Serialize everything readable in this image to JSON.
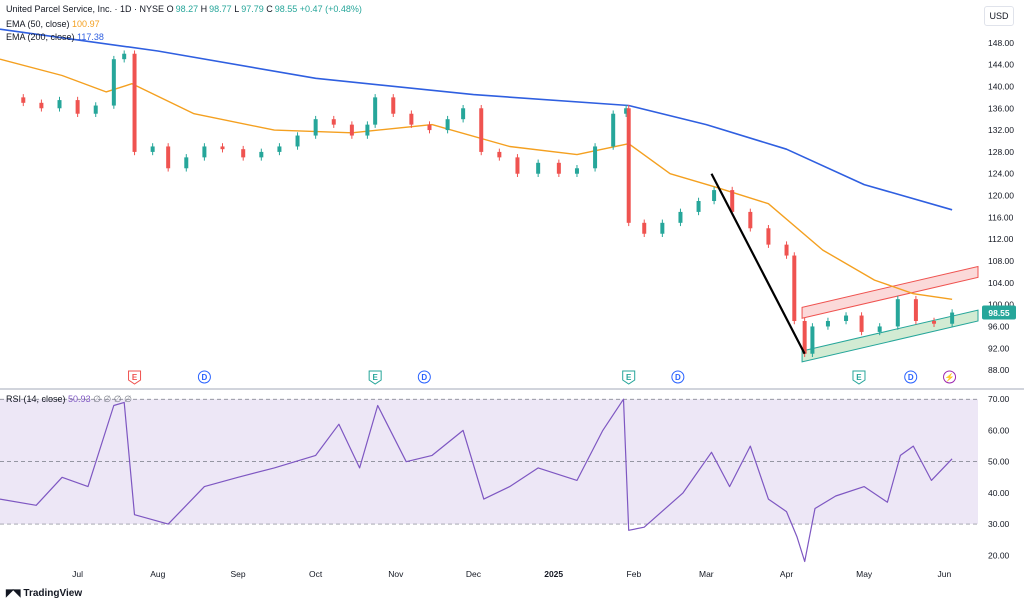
{
  "header": {
    "title": "United Parcel Service, Inc. · 1D · NYSE",
    "ohlc": [
      {
        "k": "O",
        "v": "98.27"
      },
      {
        "k": "H",
        "v": "98.77"
      },
      {
        "k": "L",
        "v": "97.79"
      },
      {
        "k": "C",
        "v": "98.55"
      }
    ],
    "change": "+0.47 (+0.48%)",
    "ema50_label": "EMA (50, close)",
    "ema50_value": "100.97",
    "ema200_label": "EMA (200, close)",
    "ema200_value": "117.38",
    "rsi_label": "RSI (14, close)",
    "rsi_value": "50.93",
    "rsi_extra": "∅ ∅ ∅ ∅"
  },
  "currency": "USD",
  "last_price": "98.55",
  "watermark": "TradingView",
  "colors": {
    "up": "#26a69a",
    "down": "#ef5350",
    "ema50": "#f4a020",
    "ema200": "#2f5fe0",
    "rsi": "#7e57c2",
    "rsi_band": "#ede7f6"
  },
  "events": [
    {
      "letter": "E",
      "color": "#ef5350",
      "date": "2024-07-23"
    },
    {
      "letter": "D",
      "color": "#2962ff",
      "date": "2024-08-19"
    },
    {
      "letter": "E",
      "color": "#26a69a",
      "date": "2024-10-24"
    },
    {
      "letter": "D",
      "color": "#2962ff",
      "date": "2024-11-12"
    },
    {
      "letter": "E",
      "color": "#26a69a",
      "date": "2025-01-30"
    },
    {
      "letter": "D",
      "color": "#2962ff",
      "date": "2025-02-18"
    },
    {
      "letter": "E",
      "color": "#26a69a",
      "date": "2025-04-29"
    },
    {
      "letter": "D",
      "color": "#2962ff",
      "date": "2025-05-19"
    },
    {
      "letter": "⚡",
      "color": "#9c27b0",
      "date": "2025-06-03"
    }
  ],
  "chart_data": [
    {
      "type": "candlestick",
      "title": "United Parcel Service, Inc. · 1D · NYSE",
      "ylim": [
        86,
        152
      ],
      "yticks": [
        88,
        92,
        96,
        100,
        104,
        108,
        112,
        116,
        120,
        124,
        128,
        132,
        136,
        140,
        144,
        148
      ],
      "xlim": [
        "2024-06-01",
        "2025-06-14"
      ],
      "x_tick_labels": [
        {
          "label": "Jul",
          "date": "2024-07-01"
        },
        {
          "label": "Aug",
          "date": "2024-08-01"
        },
        {
          "label": "Sep",
          "date": "2024-09-01"
        },
        {
          "label": "Oct",
          "date": "2024-10-01"
        },
        {
          "label": "Nov",
          "date": "2024-11-01"
        },
        {
          "label": "Dec",
          "date": "2024-12-01"
        },
        {
          "label": "2025",
          "date": "2025-01-01"
        },
        {
          "label": "Feb",
          "date": "2025-02-01"
        },
        {
          "label": "Mar",
          "date": "2025-03-01"
        },
        {
          "label": "Apr",
          "date": "2025-04-01"
        },
        {
          "label": "May",
          "date": "2025-05-01"
        },
        {
          "label": "Jun",
          "date": "2025-06-01"
        }
      ],
      "close_series": [
        {
          "date": "2024-06-03",
          "close": 138.0
        },
        {
          "date": "2024-06-10",
          "close": 137.0
        },
        {
          "date": "2024-06-17",
          "close": 136.0
        },
        {
          "date": "2024-06-24",
          "close": 137.5
        },
        {
          "date": "2024-07-01",
          "close": 135.0
        },
        {
          "date": "2024-07-08",
          "close": 136.5
        },
        {
          "date": "2024-07-15",
          "close": 145.0
        },
        {
          "date": "2024-07-19",
          "close": 146.0
        },
        {
          "date": "2024-07-23",
          "close": 128.0
        },
        {
          "date": "2024-07-30",
          "close": 129.0
        },
        {
          "date": "2024-08-05",
          "close": 125.0
        },
        {
          "date": "2024-08-12",
          "close": 127.0
        },
        {
          "date": "2024-08-19",
          "close": 129.0
        },
        {
          "date": "2024-08-26",
          "close": 128.5
        },
        {
          "date": "2024-09-03",
          "close": 127.0
        },
        {
          "date": "2024-09-10",
          "close": 128.0
        },
        {
          "date": "2024-09-17",
          "close": 129.0
        },
        {
          "date": "2024-09-24",
          "close": 131.0
        },
        {
          "date": "2024-10-01",
          "close": 134.0
        },
        {
          "date": "2024-10-08",
          "close": 133.0
        },
        {
          "date": "2024-10-15",
          "close": 131.0
        },
        {
          "date": "2024-10-21",
          "close": 133.0
        },
        {
          "date": "2024-10-24",
          "close": 138.0
        },
        {
          "date": "2024-10-31",
          "close": 135.0
        },
        {
          "date": "2024-11-07",
          "close": 133.0
        },
        {
          "date": "2024-11-14",
          "close": 132.0
        },
        {
          "date": "2024-11-21",
          "close": 134.0
        },
        {
          "date": "2024-11-27",
          "close": 136.0
        },
        {
          "date": "2024-12-04",
          "close": 128.0
        },
        {
          "date": "2024-12-11",
          "close": 127.0
        },
        {
          "date": "2024-12-18",
          "close": 124.0
        },
        {
          "date": "2024-12-26",
          "close": 126.0
        },
        {
          "date": "2025-01-03",
          "close": 124.0
        },
        {
          "date": "2025-01-10",
          "close": 125.0
        },
        {
          "date": "2025-01-17",
          "close": 129.0
        },
        {
          "date": "2025-01-24",
          "close": 135.0
        },
        {
          "date": "2025-01-29",
          "close": 136.0
        },
        {
          "date": "2025-01-30",
          "close": 115.0
        },
        {
          "date": "2025-02-05",
          "close": 113.0
        },
        {
          "date": "2025-02-12",
          "close": 115.0
        },
        {
          "date": "2025-02-19",
          "close": 117.0
        },
        {
          "date": "2025-02-26",
          "close": 119.0
        },
        {
          "date": "2025-03-04",
          "close": 121.0
        },
        {
          "date": "2025-03-11",
          "close": 117.0
        },
        {
          "date": "2025-03-18",
          "close": 114.0
        },
        {
          "date": "2025-03-25",
          "close": 111.0
        },
        {
          "date": "2025-04-01",
          "close": 109.0
        },
        {
          "date": "2025-04-04",
          "close": 97.0
        },
        {
          "date": "2025-04-08",
          "close": 91.0
        },
        {
          "date": "2025-04-11",
          "close": 96.0
        },
        {
          "date": "2025-04-17",
          "close": 97.0
        },
        {
          "date": "2025-04-24",
          "close": 98.0
        },
        {
          "date": "2025-04-30",
          "close": 95.0
        },
        {
          "date": "2025-05-07",
          "close": 96.0
        },
        {
          "date": "2025-05-14",
          "close": 101.0
        },
        {
          "date": "2025-05-21",
          "close": 97.0
        },
        {
          "date": "2025-05-28",
          "close": 96.5
        },
        {
          "date": "2025-06-04",
          "close": 98.55
        }
      ],
      "ema50": [
        {
          "date": "2024-06-01",
          "value": 145.0
        },
        {
          "date": "2024-06-25",
          "value": 142.0
        },
        {
          "date": "2024-07-12",
          "value": 139.0
        },
        {
          "date": "2024-07-22",
          "value": 140.5
        },
        {
          "date": "2024-08-15",
          "value": 135.0
        },
        {
          "date": "2024-09-15",
          "value": 132.0
        },
        {
          "date": "2024-10-15",
          "value": 131.5
        },
        {
          "date": "2024-11-15",
          "value": 133.0
        },
        {
          "date": "2024-12-15",
          "value": 129.0
        },
        {
          "date": "2025-01-10",
          "value": 127.5
        },
        {
          "date": "2025-01-30",
          "value": 129.5
        },
        {
          "date": "2025-02-15",
          "value": 124.0
        },
        {
          "date": "2025-03-05",
          "value": 121.5
        },
        {
          "date": "2025-03-25",
          "value": 118.5
        },
        {
          "date": "2025-04-15",
          "value": 110.0
        },
        {
          "date": "2025-05-05",
          "value": 104.5
        },
        {
          "date": "2025-05-20",
          "value": 102.0
        },
        {
          "date": "2025-06-04",
          "value": 100.97
        }
      ],
      "ema200": [
        {
          "date": "2024-06-01",
          "value": 150.5
        },
        {
          "date": "2024-08-01",
          "value": 146.5
        },
        {
          "date": "2024-10-01",
          "value": 141.5
        },
        {
          "date": "2024-12-01",
          "value": 138.5
        },
        {
          "date": "2025-01-30",
          "value": 136.5
        },
        {
          "date": "2025-03-01",
          "value": 133.0
        },
        {
          "date": "2025-04-01",
          "value": 128.5
        },
        {
          "date": "2025-05-01",
          "value": 122.0
        },
        {
          "date": "2025-06-04",
          "value": 117.38
        }
      ],
      "drawings": {
        "trend_line": [
          {
            "date": "2025-03-03",
            "value": 124.0
          },
          {
            "date": "2025-04-08",
            "value": 91.0
          }
        ],
        "upper_channel": {
          "start": {
            "date": "2025-04-07",
            "value": 98.5
          },
          "end": {
            "date": "2025-06-14",
            "value": 106.0
          },
          "width": 2.0
        },
        "lower_channel": {
          "start": {
            "date": "2025-04-07",
            "value": 90.5
          },
          "end": {
            "date": "2025-06-14",
            "value": 98.0
          },
          "width": 2.0
        }
      }
    },
    {
      "type": "line",
      "title": "RSI (14, close)",
      "ylim": [
        14,
        72
      ],
      "yticks": [
        20,
        30,
        40,
        50,
        60,
        70
      ],
      "band": [
        30,
        70
      ],
      "midline": 50,
      "series": [
        {
          "date": "2024-06-01",
          "value": 38
        },
        {
          "date": "2024-06-15",
          "value": 36
        },
        {
          "date": "2024-06-25",
          "value": 45
        },
        {
          "date": "2024-07-05",
          "value": 42
        },
        {
          "date": "2024-07-15",
          "value": 68
        },
        {
          "date": "2024-07-19",
          "value": 69
        },
        {
          "date": "2024-07-23",
          "value": 33
        },
        {
          "date": "2024-08-05",
          "value": 30
        },
        {
          "date": "2024-08-19",
          "value": 42
        },
        {
          "date": "2024-09-01",
          "value": 45
        },
        {
          "date": "2024-09-15",
          "value": 48
        },
        {
          "date": "2024-10-01",
          "value": 52
        },
        {
          "date": "2024-10-10",
          "value": 62
        },
        {
          "date": "2024-10-18",
          "value": 48
        },
        {
          "date": "2024-10-25",
          "value": 68
        },
        {
          "date": "2024-11-05",
          "value": 50
        },
        {
          "date": "2024-11-15",
          "value": 52
        },
        {
          "date": "2024-11-27",
          "value": 60
        },
        {
          "date": "2024-12-05",
          "value": 38
        },
        {
          "date": "2024-12-15",
          "value": 42
        },
        {
          "date": "2024-12-26",
          "value": 48
        },
        {
          "date": "2025-01-10",
          "value": 44
        },
        {
          "date": "2025-01-20",
          "value": 60
        },
        {
          "date": "2025-01-28",
          "value": 70
        },
        {
          "date": "2025-01-30",
          "value": 28
        },
        {
          "date": "2025-02-05",
          "value": 29
        },
        {
          "date": "2025-02-20",
          "value": 40
        },
        {
          "date": "2025-03-03",
          "value": 53
        },
        {
          "date": "2025-03-10",
          "value": 42
        },
        {
          "date": "2025-03-18",
          "value": 55
        },
        {
          "date": "2025-03-25",
          "value": 38
        },
        {
          "date": "2025-04-01",
          "value": 34
        },
        {
          "date": "2025-04-05",
          "value": 26
        },
        {
          "date": "2025-04-08",
          "value": 18
        },
        {
          "date": "2025-04-12",
          "value": 35
        },
        {
          "date": "2025-04-20",
          "value": 39
        },
        {
          "date": "2025-05-01",
          "value": 42
        },
        {
          "date": "2025-05-10",
          "value": 37
        },
        {
          "date": "2025-05-15",
          "value": 52
        },
        {
          "date": "2025-05-20",
          "value": 55
        },
        {
          "date": "2025-05-27",
          "value": 44
        },
        {
          "date": "2025-06-04",
          "value": 50.93
        }
      ]
    }
  ]
}
